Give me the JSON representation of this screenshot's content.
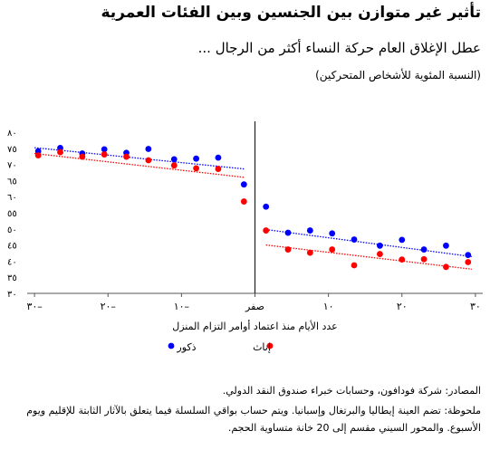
{
  "page": {
    "title": "تأثير غير متوازن بين الجنسين وبين الفئات العمرية",
    "subtitle": "عطل الإغلاق العام حركة النساء أكثر من الرجال ...",
    "unit": "(النسبة المئوية للأشخاص المتحركين)",
    "source": "المصادر: شركة فودافون، وحسابات خبراء صندوق النقد الدولي.",
    "note_line1": "ملحوظة: تضم العينة إيطاليا والبرتغال وإسبانيا. ويتم حساب بواقي السلسلة فيما يتعلق بالآثار الثابتة للإقليم ويوم",
    "note_line2": "الأسبوع. والمحور السيني مقسم إلى 20 خانة متساوية الحجم."
  },
  "chart_data": {
    "type": "scatter",
    "xlabel": "عدد الأيام منذ اعتماد أوامر التزام المنزل",
    "xlim": [
      -31,
      31
    ],
    "ylim": [
      30,
      80
    ],
    "x_ticks": [
      {
        "value": -30,
        "label": "٣٠–"
      },
      {
        "value": -20,
        "label": "٢٠–"
      },
      {
        "value": -10,
        "label": "١٠–"
      },
      {
        "value": 0,
        "label": "صفر"
      },
      {
        "value": 10,
        "label": "١٠"
      },
      {
        "value": 20,
        "label": "٢٠"
      },
      {
        "value": 30,
        "label": "٣٠"
      }
    ],
    "y_ticks": [
      {
        "value": 30,
        "label": "٣٠"
      },
      {
        "value": 35,
        "label": "٣٥"
      },
      {
        "value": 40,
        "label": "٤٠"
      },
      {
        "value": 45,
        "label": "٤٥"
      },
      {
        "value": 50,
        "label": "٥٠"
      },
      {
        "value": 55,
        "label": "٥٥"
      },
      {
        "value": 60,
        "label": "٦٠"
      },
      {
        "value": 65,
        "label": "٦٥"
      },
      {
        "value": 70,
        "label": "٧٠"
      },
      {
        "value": 75,
        "label": "٧٥"
      },
      {
        "value": 80,
        "label": "٨٠"
      }
    ],
    "grid": false,
    "zero_line": true,
    "legend_position": "bottom-center",
    "series": [
      {
        "name": "ذكور",
        "color": "#0000ff",
        "x": [
          -29.5,
          -26.5,
          -23.5,
          -20.5,
          -17.5,
          -14.5,
          -11,
          -8,
          -5,
          -1.5,
          1.5,
          4.5,
          7.5,
          10.5,
          13.5,
          17,
          20,
          23,
          26,
          29
        ],
        "y": [
          74.1,
          75.1,
          73.4,
          74.7,
          73.6,
          74.8,
          71.6,
          71.8,
          72.1,
          63.8,
          56.9,
          48.8,
          49.5,
          48.6,
          46.7,
          44.8,
          46.6,
          43.6,
          44.8,
          41.9
        ],
        "trend": [
          [
            -30,
            75.2
          ],
          [
            -1.5,
            68.6
          ],
          [
            1.5,
            49.8
          ],
          [
            29.5,
            41.4
          ]
        ]
      },
      {
        "name": "إناث",
        "color": "#ff0000",
        "x": [
          -29.5,
          -26.5,
          -23.5,
          -20.5,
          -17.5,
          -14.5,
          -11,
          -8,
          -5,
          -1.5,
          1.5,
          4.5,
          7.5,
          10.5,
          13.5,
          17,
          20,
          23,
          26,
          29
        ],
        "y": [
          72.8,
          73.8,
          72.4,
          73.1,
          72.4,
          71.3,
          69.7,
          68.8,
          68.6,
          58.5,
          49.5,
          43.6,
          42.6,
          43.6,
          38.7,
          42.2,
          40.5,
          40.6,
          38.2,
          39.7
        ],
        "trend": [
          [
            -30,
            73.4
          ],
          [
            -1.5,
            66.0
          ],
          [
            1.5,
            45.0
          ],
          [
            29.5,
            37.5
          ]
        ]
      }
    ]
  }
}
